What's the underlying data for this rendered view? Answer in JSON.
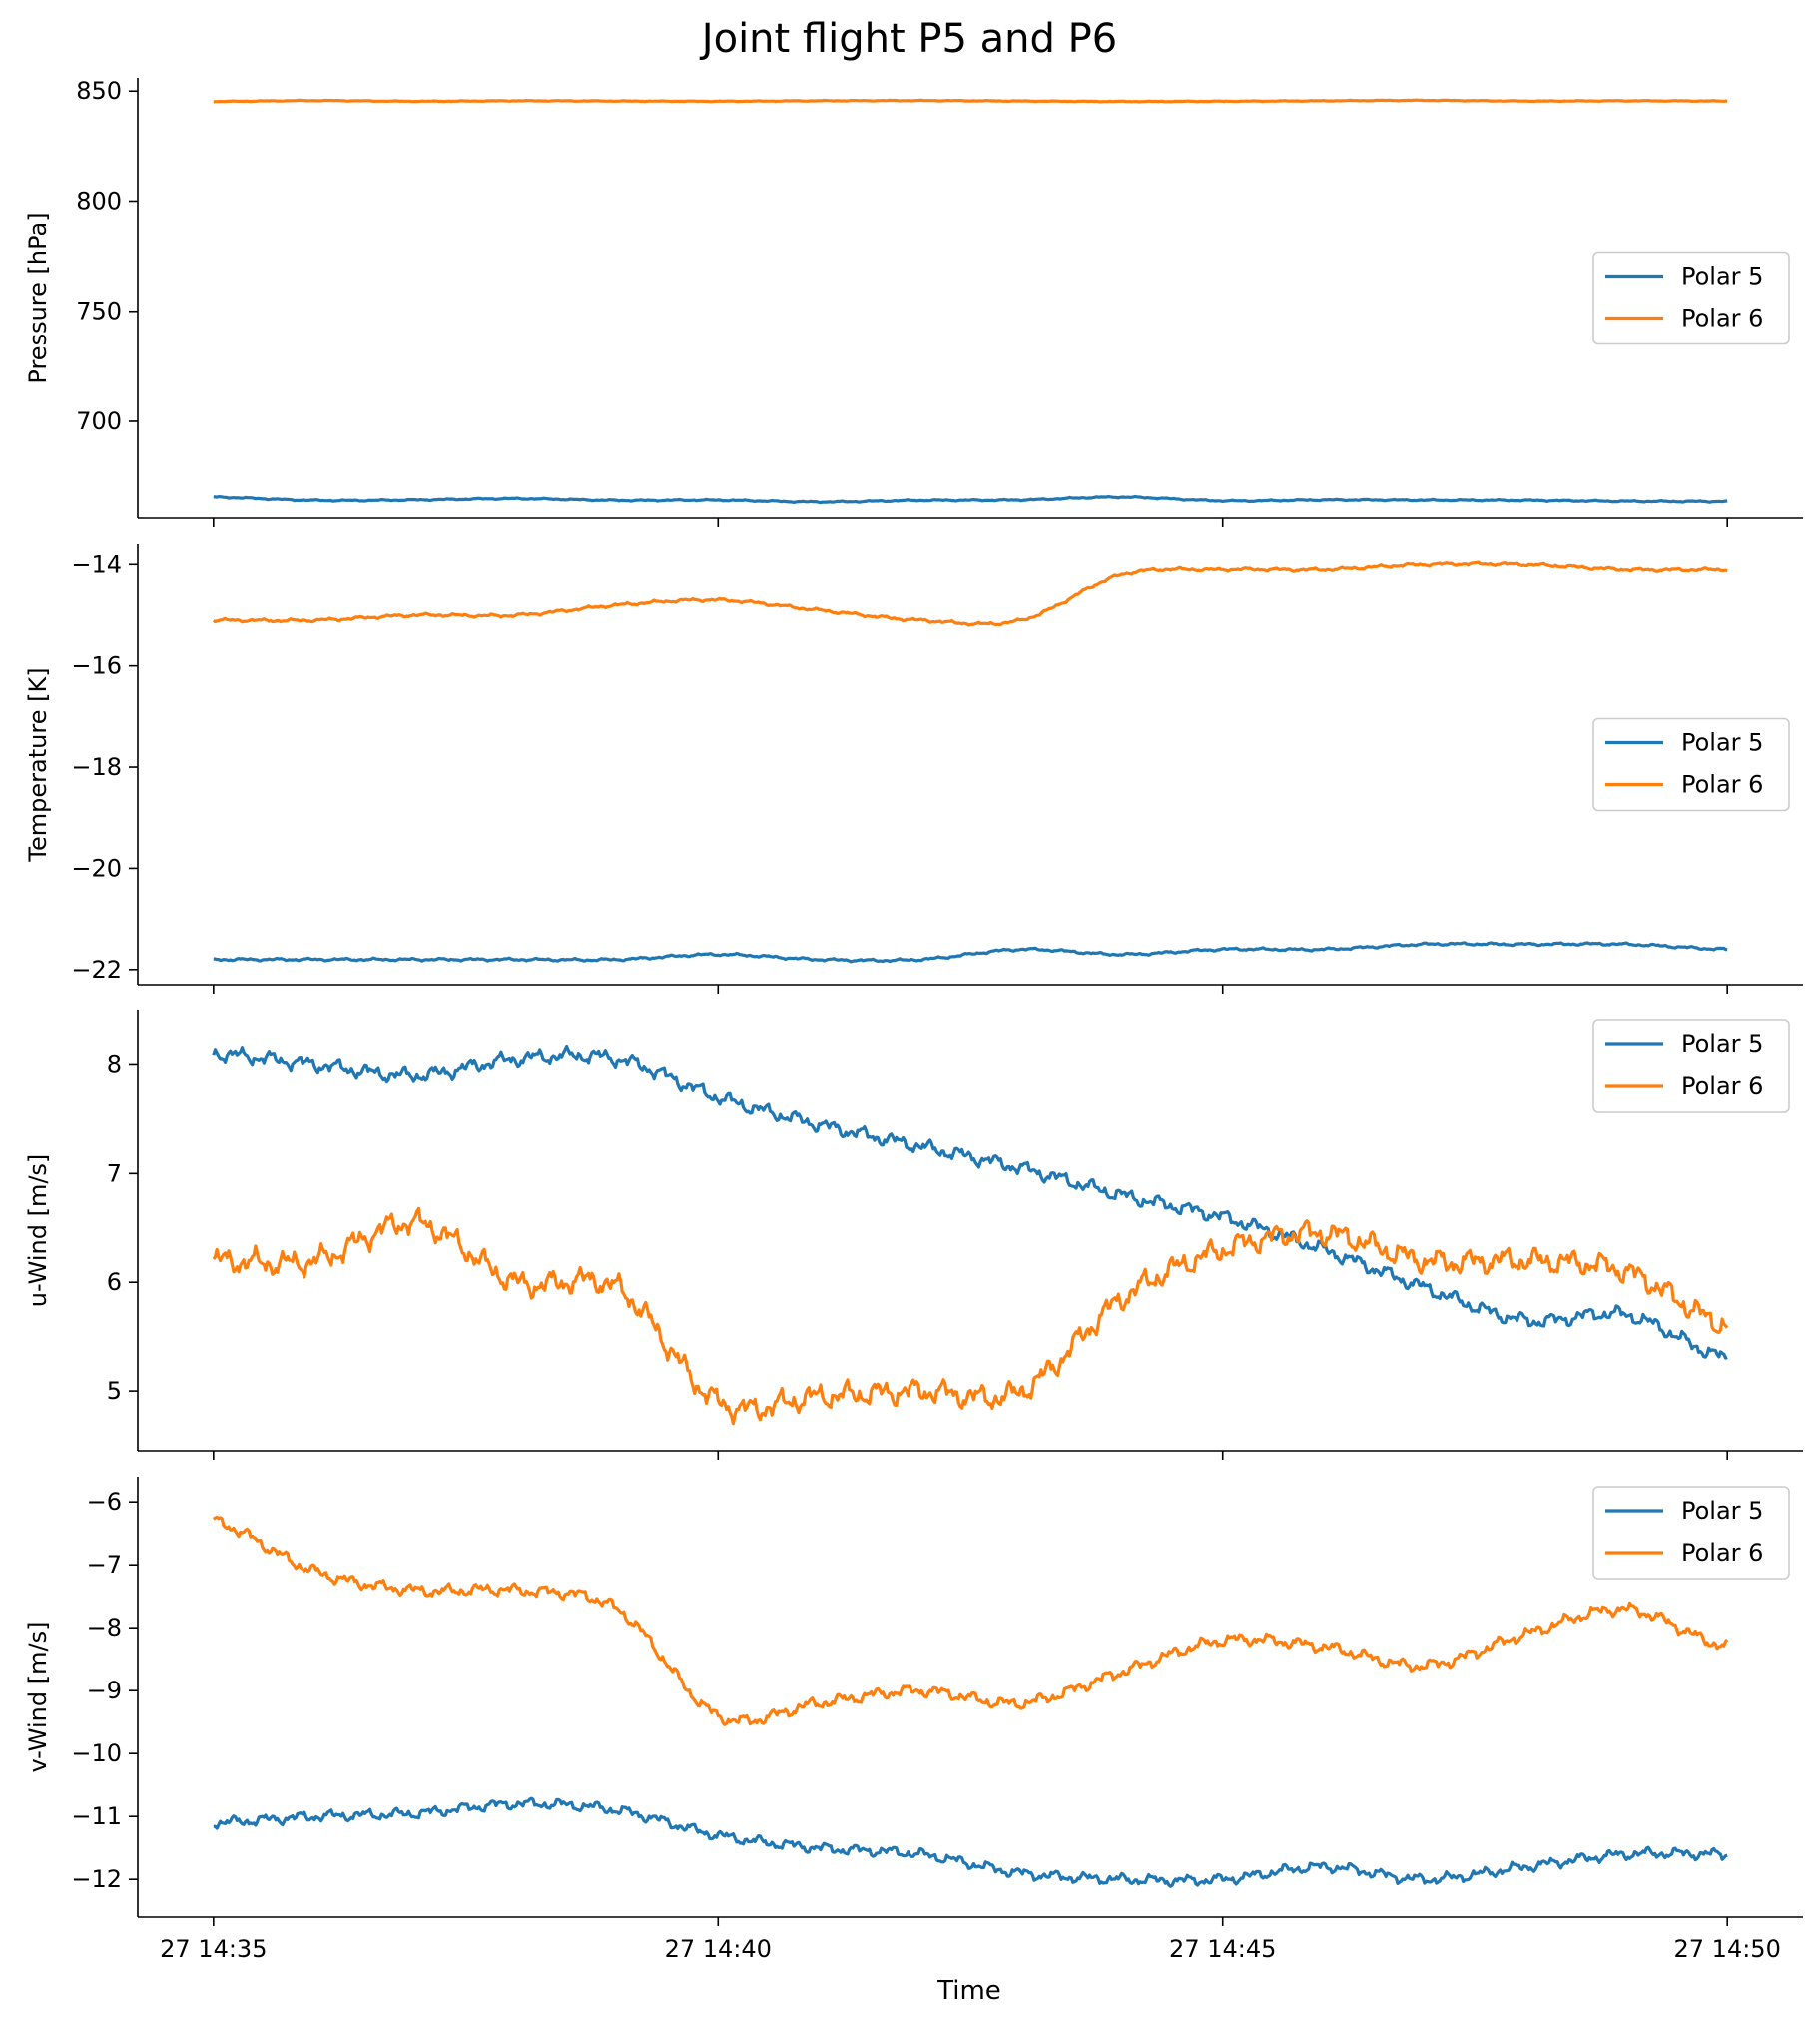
{
  "figure_title": "Joint flight P5 and P6",
  "colors": {
    "polar5": "#1f77b4",
    "polar6": "#ff7f0e"
  },
  "legend_labels": [
    "Polar 5",
    "Polar 6"
  ],
  "x_axis": {
    "label": "Time",
    "minutes_range": [
      -0.75,
      15.75
    ],
    "ticks": [
      {
        "minute": 0,
        "label": "27 14:35"
      },
      {
        "minute": 5,
        "label": "27 14:40"
      },
      {
        "minute": 10,
        "label": "27 14:45"
      },
      {
        "minute": 15,
        "label": "27 14:50"
      }
    ]
  },
  "chart_data": [
    {
      "type": "line",
      "ylabel": "Pressure [hPa]",
      "ylim": [
        656,
        856
      ],
      "yticks": [
        700,
        750,
        800,
        850
      ],
      "ytick_labels": [
        "700",
        "750",
        "800",
        "850"
      ],
      "legend_position": "right",
      "x": [
        0,
        1,
        2,
        3,
        4,
        5,
        6,
        7,
        8,
        9,
        10,
        11,
        12,
        13,
        14,
        15
      ],
      "series": [
        {
          "name": "Polar 5",
          "values": [
            665.5,
            664.0,
            664.2,
            664.8,
            664.0,
            664.1,
            663.3,
            664.0,
            664.2,
            665.5,
            663.8,
            664.2,
            664.1,
            664.0,
            663.6,
            663.5
          ],
          "noise": 0.3
        },
        {
          "name": "Polar 6",
          "values": [
            845.3,
            845.7,
            845.4,
            845.6,
            845.5,
            845.4,
            845.6,
            845.7,
            845.5,
            845.3,
            845.4,
            845.6,
            845.8,
            845.5,
            845.6,
            845.5
          ],
          "noise": 0.15
        }
      ]
    },
    {
      "type": "line",
      "ylabel": "Temperature [K]",
      "ylim": [
        -22.3,
        -13.6
      ],
      "yticks": [
        -22,
        -20,
        -18,
        -16,
        -14
      ],
      "ytick_labels": [
        "−22",
        "−20",
        "−18",
        "−16",
        "−14"
      ],
      "legend_position": "right",
      "x": [
        0,
        1,
        2,
        3,
        4,
        5,
        6,
        7,
        8,
        9,
        10,
        11,
        12,
        13,
        14,
        15
      ],
      "series": [
        {
          "name": "Polar 5",
          "values": [
            -21.8,
            -21.8,
            -21.8,
            -21.8,
            -21.8,
            -21.7,
            -21.8,
            -21.8,
            -21.6,
            -21.7,
            -21.6,
            -21.6,
            -21.5,
            -21.5,
            -21.5,
            -21.6
          ],
          "noise": 0.025
        },
        {
          "name": "Polar 6",
          "values": [
            -15.1,
            -15.1,
            -15.0,
            -15.0,
            -14.8,
            -14.7,
            -14.9,
            -15.1,
            -15.1,
            -14.2,
            -14.1,
            -14.1,
            -14.0,
            -14.0,
            -14.1,
            -14.1
          ],
          "noise": 0.03
        }
      ]
    },
    {
      "type": "line",
      "ylabel": "u-Wind [m/s]",
      "ylim": [
        4.45,
        8.5
      ],
      "yticks": [
        5,
        6,
        7,
        8
      ],
      "ytick_labels": [
        "5",
        "6",
        "7",
        "8"
      ],
      "legend_position": "top-right",
      "x": [
        0,
        1,
        2,
        3,
        4,
        5,
        6,
        7,
        8,
        9,
        10,
        11,
        12,
        13,
        14,
        15
      ],
      "series": [
        {
          "name": "Polar 5",
          "values": [
            8.1,
            8.0,
            7.9,
            8.05,
            8.05,
            7.7,
            7.45,
            7.25,
            7.05,
            6.8,
            6.6,
            6.3,
            5.95,
            5.65,
            5.7,
            5.3
          ],
          "noise": 0.07
        },
        {
          "name": "Polar 6",
          "values": [
            6.2,
            6.2,
            6.55,
            6.0,
            5.95,
            4.9,
            4.95,
            5.0,
            5.0,
            5.85,
            6.3,
            6.45,
            6.2,
            6.2,
            6.1,
            5.6
          ],
          "noise": 0.12
        }
      ]
    },
    {
      "type": "line",
      "ylabel": "v-Wind [m/s]",
      "ylim": [
        -12.6,
        -5.6
      ],
      "yticks": [
        -12,
        -11,
        -10,
        -9,
        -8,
        -7,
        -6
      ],
      "ytick_labels": [
        "−12",
        "−11",
        "−10",
        "−9",
        "−8",
        "−7",
        "−6"
      ],
      "legend_position": "top-right",
      "x": [
        0,
        1,
        2,
        3,
        4,
        5,
        6,
        7,
        8,
        9,
        10,
        11,
        12,
        13,
        14,
        15
      ],
      "series": [
        {
          "name": "Polar 5",
          "values": [
            -11.1,
            -11.0,
            -10.95,
            -10.8,
            -10.9,
            -11.3,
            -11.5,
            -11.6,
            -11.9,
            -12.0,
            -12.0,
            -11.8,
            -12.0,
            -11.8,
            -11.6,
            -11.6
          ],
          "noise": 0.09
        },
        {
          "name": "Polar 6",
          "values": [
            -6.3,
            -7.1,
            -7.4,
            -7.4,
            -7.7,
            -9.4,
            -9.2,
            -9.0,
            -9.2,
            -8.7,
            -8.2,
            -8.3,
            -8.6,
            -8.1,
            -7.7,
            -8.3
          ],
          "noise": 0.1
        }
      ]
    }
  ]
}
